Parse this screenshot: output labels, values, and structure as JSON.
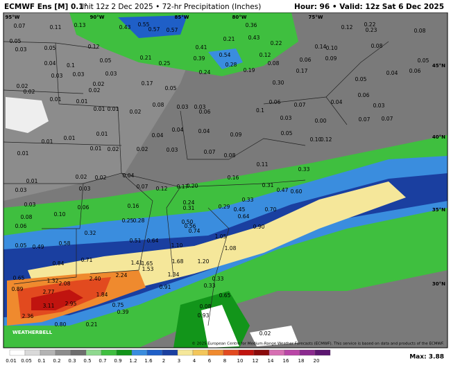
{
  "header": {
    "model": "ECMWF Ens [M] 0.1°",
    "run": "Init 12z 2 Dec 2025 • 72-hr Precipitation (Inches)",
    "valid": "Hour: 96 • Valid: 12z Sat 6 Dec 2025"
  },
  "longitudes": [
    "95°W",
    "90°W",
    "85°W",
    "80°W",
    "75°W"
  ],
  "latitudes": [
    "45°N",
    "40°N",
    "35°N",
    "30°N"
  ],
  "stations": [
    "0.07",
    "0.11",
    "0.13",
    "0.43",
    "0.55",
    "0.57",
    "0.57",
    "0.12",
    "0.22",
    "0.23",
    "0.08",
    "0.05",
    "0.05",
    "0.12",
    "0.21",
    "0.43",
    "0.36",
    "0.22",
    "0.14",
    "0.10",
    "0.08",
    "0.41",
    "0.54",
    "0.12",
    "0.09",
    "0.03",
    "0.04",
    "0.1",
    "0.05",
    "0.21",
    "0.25",
    "0.28",
    "0.08",
    "0.06",
    "0.04",
    "0.06",
    "0.05",
    "0.03",
    "0.03",
    "0.03",
    "0.24",
    "0.19",
    "0.17",
    "0.05",
    "0.02",
    "0.02",
    "0.02",
    "0.02",
    "0.17",
    "0.05",
    "0.39",
    "0.30",
    "0.06",
    "0.01",
    "0.01",
    "0.08",
    "0.03",
    "0.03",
    "0.06",
    "0.06",
    "0.07",
    "0.04",
    "0.03",
    "0.01",
    "0.01",
    "0.02",
    "0.1",
    "0.03",
    "0.00",
    "0.07",
    "0.07",
    "0.04",
    "0.04",
    "0.01",
    "0.04",
    "0.09",
    "0.05",
    "0.10",
    "0.12",
    "0.01",
    "0.01",
    "0.01",
    "0.02",
    "0.02",
    "0.03",
    "0.07",
    "0.08",
    "0.01",
    "0.02",
    "0.02",
    "0.04",
    "0.11",
    "0.16",
    "0.33",
    "0.01",
    "0.03",
    "0.03",
    "0.07",
    "0.12",
    "0.17",
    "0.20",
    "0.31",
    "0.47",
    "0.60",
    "0.03",
    "0.06",
    "0.16",
    "0.24",
    "0.31",
    "0.29",
    "0.45",
    "0.33",
    "0.70",
    "0.64",
    "0.08",
    "0.10",
    "0.25",
    "0.28",
    "0.50",
    "0.56",
    "0.74",
    "0.90",
    "0.06",
    "0.32",
    "0.51",
    "0.64",
    "1.05",
    "0.58",
    "0.49",
    "1.10",
    "1.08",
    "0.05",
    "0.71",
    "0.84",
    "1.41",
    "1.65",
    "1.53",
    "1.68",
    "1.20",
    "0.65",
    "1.32",
    "2.08",
    "2.40",
    "2.24",
    "1.34",
    "0.33",
    "0.33",
    "0.89",
    "2.77",
    "1.84",
    "0.91",
    "0.65",
    "3.11",
    "2.95",
    "0.75",
    "0.39",
    "0.08",
    "2.36",
    "0.93",
    "0.80",
    "0.21",
    "0.02"
  ],
  "legend": {
    "labels": [
      "0.01",
      "0.05",
      "0.1",
      "0.2",
      "0.3",
      "0.5",
      "0.7",
      "0.9",
      "1.2",
      "1.6",
      "2",
      "3",
      "4",
      "6",
      "8",
      "10",
      "12",
      "14",
      "16",
      "18",
      "20"
    ],
    "colors": [
      "#ffffff",
      "#d9d9d9",
      "#b3b3b3",
      "#8c8c8c",
      "#6e6e6e",
      "#8fd88f",
      "#3fbf3f",
      "#12951a",
      "#3a8dde",
      "#1f5fc7",
      "#1a3fa0",
      "#f5e79a",
      "#f3c65a",
      "#ef8a2e",
      "#e24a1f",
      "#c0140f",
      "#8a0b0b",
      "#d66fb2",
      "#b946a6",
      "#8b2a8f",
      "#5b1670"
    ],
    "max": "Max: 3.88"
  },
  "logo": "WEATHERBELL",
  "credit": "© 2025 European Centre for Medium-Range Weather Forecasts (ECMWF). This service is based on data and products of the ECMWF."
}
